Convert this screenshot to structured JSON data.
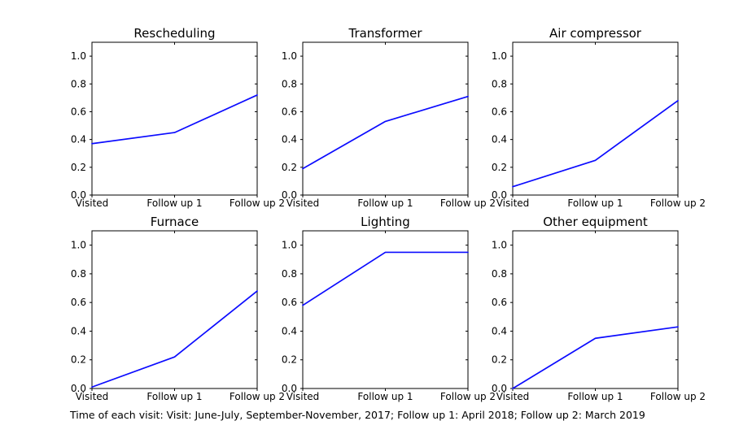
{
  "caption": "Time of each visit: Visit: June-July, September-November, 2017; Follow up 1: April 2018; Follow up 2: March 2019",
  "chart_data": {
    "type": "line",
    "layout": "2 rows x 3 columns of small multiples",
    "categories": [
      "Visited",
      "Follow up 1",
      "Follow up 2"
    ],
    "yticks": [
      0.0,
      0.2,
      0.4,
      0.6,
      0.8,
      1.0
    ],
    "ylim": [
      0.0,
      1.1
    ],
    "grid": false,
    "legend": "none",
    "line_color": "#0b0bff",
    "spine_color": "#000000",
    "charts": [
      {
        "title": "Rescheduling",
        "values": [
          0.37,
          0.45,
          0.72
        ]
      },
      {
        "title": "Transformer",
        "values": [
          0.19,
          0.53,
          0.71
        ]
      },
      {
        "title": "Air compressor",
        "values": [
          0.06,
          0.25,
          0.68
        ]
      },
      {
        "title": "Furnace",
        "values": [
          0.01,
          0.22,
          0.68
        ]
      },
      {
        "title": "Lighting",
        "values": [
          0.58,
          0.95,
          0.95
        ]
      },
      {
        "title": "Other equipment",
        "values": [
          0.0,
          0.35,
          0.43
        ]
      }
    ]
  }
}
